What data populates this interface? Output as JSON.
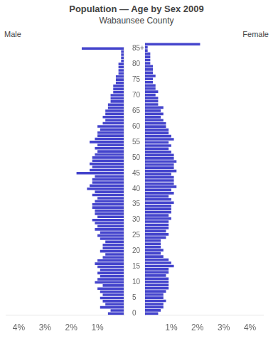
{
  "chart_data": {
    "type": "bar",
    "orientation": "horizontal",
    "title": "Population — Age by Sex 2009",
    "subtitle": "Wabaunsee County",
    "categories": [
      "0",
      null,
      null,
      null,
      null,
      "5",
      null,
      null,
      null,
      null,
      "10",
      null,
      null,
      null,
      null,
      "15",
      null,
      null,
      null,
      null,
      "20",
      null,
      null,
      null,
      null,
      "25",
      null,
      null,
      null,
      null,
      "30",
      null,
      null,
      null,
      null,
      "35",
      null,
      null,
      null,
      null,
      "40",
      null,
      null,
      null,
      null,
      "45",
      null,
      null,
      null,
      null,
      "50",
      null,
      null,
      null,
      null,
      "55",
      null,
      null,
      null,
      null,
      "60",
      null,
      null,
      null,
      null,
      "65",
      null,
      null,
      null,
      null,
      "70",
      null,
      null,
      null,
      null,
      "75",
      null,
      null,
      null,
      null,
      "80",
      null,
      null,
      null,
      null,
      "85+"
    ],
    "series": [
      {
        "name": "Male",
        "values": [
          0.6,
          0.5,
          0.9,
          0.7,
          0.8,
          0.9,
          0.8,
          0.9,
          1.0,
          0.8,
          1.1,
          1.0,
          0.9,
          1.0,
          0.9,
          1.0,
          1.1,
          1.0,
          0.8,
          0.7,
          0.9,
          0.8,
          0.8,
          0.7,
          0.9,
          1.0,
          0.9,
          1.1,
          1.0,
          1.1,
          1.2,
          1.0,
          1.1,
          1.1,
          1.2,
          1.2,
          1.1,
          1.0,
          1.2,
          1.1,
          1.4,
          1.3,
          1.2,
          1.2,
          1.1,
          1.8,
          1.3,
          1.2,
          1.3,
          1.2,
          1.2,
          1.1,
          1.0,
          1.1,
          1.0,
          1.3,
          1.1,
          1.0,
          1.0,
          0.9,
          1.0,
          0.8,
          0.7,
          0.8,
          0.7,
          0.7,
          0.6,
          0.6,
          0.5,
          0.5,
          0.5,
          0.4,
          0.4,
          0.4,
          0.3,
          0.3,
          0.3,
          0.2,
          0.2,
          0.2,
          0.2,
          0.1,
          0.1,
          0.1,
          0.1,
          1.6
        ]
      },
      {
        "name": "Female",
        "values": [
          0.5,
          0.6,
          0.7,
          0.7,
          0.8,
          0.7,
          0.7,
          0.8,
          0.9,
          0.9,
          0.9,
          0.9,
          0.8,
          0.9,
          0.9,
          1.1,
          1.0,
          0.9,
          0.7,
          0.6,
          0.7,
          0.6,
          0.6,
          0.6,
          0.8,
          0.9,
          0.8,
          0.9,
          0.9,
          0.9,
          1.0,
          0.9,
          1.0,
          1.0,
          1.0,
          1.1,
          1.0,
          0.9,
          1.1,
          1.0,
          1.2,
          1.1,
          1.1,
          1.1,
          1.0,
          1.2,
          1.1,
          1.1,
          1.2,
          1.1,
          1.1,
          1.0,
          0.9,
          1.0,
          0.9,
          1.1,
          1.0,
          0.9,
          0.9,
          0.8,
          0.8,
          0.7,
          0.6,
          0.7,
          0.6,
          0.7,
          0.5,
          0.5,
          0.5,
          0.4,
          0.5,
          0.4,
          0.4,
          0.3,
          0.3,
          0.4,
          0.3,
          0.3,
          0.3,
          0.2,
          0.2,
          0.2,
          0.2,
          0.1,
          0.1,
          2.1
        ]
      }
    ],
    "color": "#4444cc",
    "xlim": [
      0,
      4.5
    ],
    "xticks": [
      {
        "value": 1,
        "label": "1%"
      },
      {
        "value": 2,
        "label": "2%"
      },
      {
        "value": 3,
        "label": "3%"
      },
      {
        "value": 4,
        "label": "4%"
      }
    ],
    "grid": false
  }
}
